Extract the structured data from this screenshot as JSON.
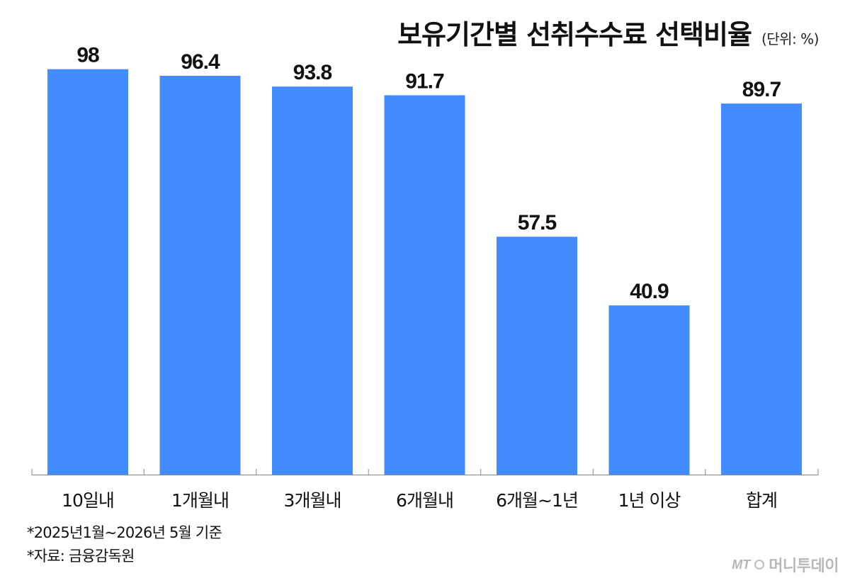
{
  "header": {
    "title": "보유기간별 선취수수료 선택비율",
    "unit": "(단위: %)"
  },
  "chart_data": {
    "type": "bar",
    "categories": [
      "10일내",
      "1개월내",
      "3개월내",
      "6개월내",
      "6개월~1년",
      "1년 이상",
      "합계"
    ],
    "values": [
      98,
      96.4,
      93.8,
      91.7,
      57.5,
      40.9,
      89.7
    ],
    "value_labels": [
      "98",
      "96.4",
      "93.8",
      "91.7",
      "57.5",
      "40.9",
      "89.7"
    ],
    "ylim": [
      0,
      100
    ],
    "grid": false,
    "legend": "none",
    "bar_color": "#428cff",
    "axis_color": "#888888"
  },
  "notes": [
    "*2025년1월~2026년 5월 기준",
    "*자료: 금융감독원"
  ],
  "watermark": {
    "mark": "MT",
    "text": "머니투데이"
  }
}
